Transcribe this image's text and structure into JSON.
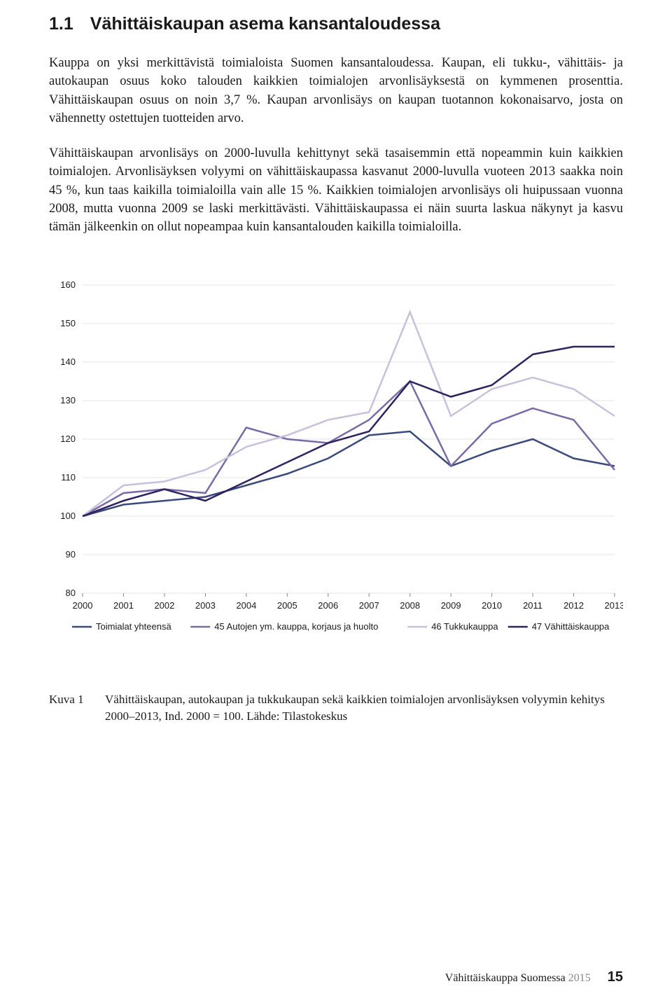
{
  "heading": {
    "number": "1.1",
    "title": "Vähittäiskaupan asema kansantaloudessa"
  },
  "paragraphs": {
    "p1": "Kauppa on yksi merkittävistä toimialoista Suomen kansantaloudessa. Kaupan, eli tukku-, vähittäis- ja autokaupan osuus koko talouden kaikkien toimialojen arvon­lisäyksestä on kymmenen prosenttia. Vähittäiskaupan osuus on noin 3,7 %. Kau­pan arvonlisäys on kaupan tuotannon kokonaisarvo, josta on vähennetty ostettu­jen tuotteiden arvo.",
    "p2": "Vähittäiskaupan arvonlisäys on 2000-luvulla kehittynyt sekä tasaisemmin että nopeammin kuin kaikkien toimialojen. Arvonlisäyksen volyymi on vähittäiskau­passa kasvanut 2000-luvulla vuoteen 2013 saakka noin 45 %, kun taas kaikilla toimialoilla vain alle 15 %. Kaikkien toimialojen arvonlisäys oli huipussaan vuonna 2008, mutta vuonna 2009 se laski merkittävästi. Vähittäiskaupassa ei näin suurta laskua näkynyt ja kasvu tämän jälkeenkin on ollut nopeampaa kuin kansantalouden kaikilla toimialoilla."
  },
  "chart": {
    "type": "line",
    "ylim": [
      80,
      160
    ],
    "ytick_step": 10,
    "yticks": [
      80,
      90,
      100,
      110,
      120,
      130,
      140,
      150,
      160
    ],
    "x_categories": [
      "2000",
      "2001",
      "2002",
      "2003",
      "2004",
      "2005",
      "2006",
      "2007",
      "2008",
      "2009",
      "2010",
      "2011",
      "2012",
      "2013"
    ],
    "grid_color": "#e6e6e6",
    "axis_text_color": "#1a1a1a",
    "background_color": "#ffffff",
    "tick_fontsize": 13,
    "line_width": 2.5,
    "series": [
      {
        "name": "Toimialat yhteensä",
        "color": "#3b4a7a",
        "values": [
          100,
          103,
          104,
          105,
          108,
          111,
          115,
          121,
          122,
          113,
          117,
          120,
          115,
          113
        ]
      },
      {
        "name": "45 Autojen ym. kauppa, korjaus ja huolto",
        "color": "#7a6aa6",
        "values": [
          100,
          106,
          107,
          106,
          123,
          120,
          119,
          125,
          135,
          113,
          124,
          128,
          125,
          112
        ]
      },
      {
        "name": "46 Tukkukauppa",
        "color": "#c9c1db",
        "values": [
          100,
          108,
          109,
          112,
          118,
          121,
          125,
          127,
          153,
          126,
          133,
          136,
          133,
          126
        ]
      },
      {
        "name": "47 Vähittäiskauppa",
        "color": "#2e2360",
        "values": [
          100,
          104,
          107,
          104,
          109,
          114,
          119,
          122,
          135,
          131,
          134,
          142,
          144,
          144
        ]
      }
    ]
  },
  "caption": {
    "label": "Kuva 1",
    "text": "Vähittäiskaupan, autokaupan ja tukkukaupan sekä kaikkien toimialojen arvonlisäyksen volyymin kehitys 2000–2013, Ind. 2000 = 100. Lähde: Tilastokeskus"
  },
  "footer": {
    "book": "Vähittäiskauppa Suomessa",
    "year": "2015",
    "page": "15"
  }
}
